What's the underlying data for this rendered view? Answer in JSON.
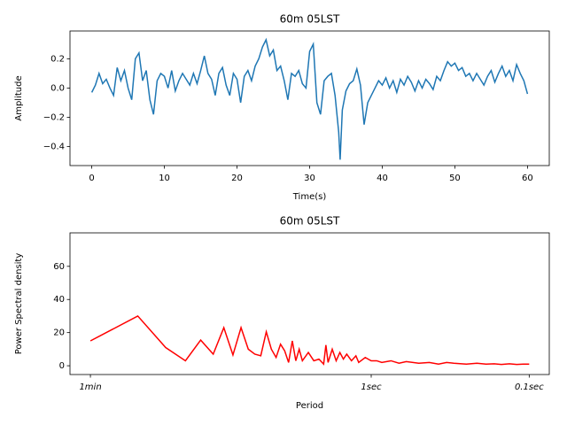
{
  "chart_data": [
    {
      "type": "line",
      "title": "60m 05LST",
      "x_label": "Time(s)",
      "y_label": "Amplitude",
      "xlim": [
        -3,
        63
      ],
      "ylim": [
        -0.53,
        0.39
      ],
      "xticks": [
        0,
        10,
        20,
        30,
        40,
        50,
        60
      ],
      "yticks": [
        {
          "value": -0.4,
          "label": "−0.4"
        },
        {
          "value": -0.2,
          "label": "−0.2"
        },
        {
          "value": 0,
          "label": "0.0"
        },
        0.2
      ],
      "series": [
        {
          "color": "#1f77b4",
          "x": [
            0,
            0.5,
            1,
            1.5,
            2,
            2.5,
            3,
            3.5,
            4,
            4.5,
            5,
            5.5,
            6,
            6.5,
            7,
            7.5,
            8,
            8.5,
            9,
            9.5,
            10,
            10.5,
            11,
            11.5,
            12,
            12.5,
            13,
            13.5,
            14,
            14.5,
            15,
            15.5,
            16,
            16.5,
            17,
            17.5,
            18,
            18.5,
            19,
            19.5,
            20,
            20.5,
            21,
            21.5,
            22,
            22.5,
            23,
            23.5,
            24,
            24.5,
            25,
            25.5,
            26,
            26.5,
            27,
            27.5,
            28,
            28.5,
            29,
            29.5,
            30,
            30.5,
            31,
            31.5,
            32,
            32.5,
            33,
            33.5,
            34,
            34.2,
            34.5,
            35,
            35.5,
            36,
            36.5,
            37,
            37.5,
            38,
            38.5,
            39,
            39.5,
            40,
            40.5,
            41,
            41.5,
            42,
            42.5,
            43,
            43.5,
            44,
            44.5,
            45,
            45.5,
            46,
            46.5,
            47,
            47.5,
            48,
            48.5,
            49,
            49.5,
            50,
            50.5,
            51,
            51.5,
            52,
            52.5,
            53,
            53.5,
            54,
            54.5,
            55,
            55.5,
            56,
            56.5,
            57,
            57.5,
            58,
            58.5,
            59,
            59.5,
            60
          ],
          "values": [
            -0.03,
            0.02,
            0.1,
            0.03,
            0.06,
            0,
            -0.05,
            0.14,
            0.05,
            0.12,
            0,
            -0.08,
            0.2,
            0.24,
            0.05,
            0.12,
            -0.08,
            -0.18,
            0.05,
            0.1,
            0.08,
            0,
            0.12,
            -0.02,
            0.05,
            0.1,
            0.06,
            0.02,
            0.1,
            0.03,
            0.12,
            0.22,
            0.1,
            0.06,
            -0.05,
            0.1,
            0.14,
            0.02,
            -0.05,
            0.1,
            0.06,
            -0.1,
            0.08,
            0.12,
            0.05,
            0.15,
            0.2,
            0.28,
            0.33,
            0.22,
            0.26,
            0.12,
            0.15,
            0.05,
            -0.08,
            0.1,
            0.08,
            0.12,
            0.03,
            0,
            0.25,
            0.3,
            -0.1,
            -0.18,
            0.05,
            0.08,
            0.1,
            -0.05,
            -0.3,
            -0.49,
            -0.15,
            -0.02,
            0.03,
            0.05,
            0.13,
            0.02,
            -0.25,
            -0.1,
            -0.05,
            0,
            0.05,
            0.02,
            0.07,
            0,
            0.05,
            -0.03,
            0.06,
            0.02,
            0.08,
            0.04,
            -0.02,
            0.05,
            0,
            0.06,
            0.03,
            -0.01,
            0.08,
            0.05,
            0.12,
            0.18,
            0.15,
            0.17,
            0.12,
            0.14,
            0.08,
            0.1,
            0.05,
            0.1,
            0.06,
            0.02,
            0.08,
            0.12,
            0.04,
            0.1,
            0.15,
            0.08,
            0.12,
            0.05,
            0.16,
            0.1,
            0.05,
            -0.04
          ]
        }
      ]
    },
    {
      "type": "line",
      "title": "60m 05LST",
      "x_label": "Period",
      "y_label": "Power Spectral density",
      "xscale": "log",
      "xlim": [
        0.0124,
        13.4
      ],
      "ylim": [
        -5.3,
        80.2
      ],
      "xticks": [
        {
          "value": 0.0167,
          "label": "1min"
        },
        {
          "value": 1,
          "label": "1sec"
        },
        {
          "value": 10,
          "label": "0.1sec"
        }
      ],
      "yticks": [
        0,
        20,
        40,
        60
      ],
      "series": [
        {
          "color": "#ff0000",
          "x": [
            0.0167,
            0.0333,
            0.05,
            0.0667,
            0.0833,
            0.1,
            0.1167,
            0.1333,
            0.15,
            0.1667,
            0.1833,
            0.2,
            0.2167,
            0.2333,
            0.25,
            0.2667,
            0.2833,
            0.3,
            0.3167,
            0.3333,
            0.35,
            0.3667,
            0.4,
            0.4333,
            0.4667,
            0.5,
            0.5167,
            0.5333,
            0.5667,
            0.6,
            0.6333,
            0.6667,
            0.7,
            0.75,
            0.8,
            0.8333,
            0.9167,
            1,
            1.0833,
            1.1667,
            1.3333,
            1.5,
            1.6667,
            2,
            2.3333,
            2.6667,
            3,
            3.3333,
            4,
            4.6667,
            5.3333,
            6,
            6.6667,
            7.5,
            8.3333,
            9.1667,
            10
          ],
          "values": [
            15,
            30,
            11,
            3,
            15.5,
            7,
            23,
            6.5,
            23,
            10,
            7,
            6,
            20.5,
            10,
            5,
            13,
            9,
            2,
            15,
            3,
            10,
            3,
            8,
            3,
            4,
            1,
            12.5,
            2,
            10,
            3,
            8,
            4,
            7,
            3,
            6,
            2,
            5,
            3,
            3,
            2,
            3,
            1.5,
            2.5,
            1.5,
            2,
            1,
            2,
            1.5,
            1,
            1.5,
            1,
            1.2,
            0.8,
            1.2,
            0.8,
            1,
            1
          ]
        }
      ]
    }
  ]
}
